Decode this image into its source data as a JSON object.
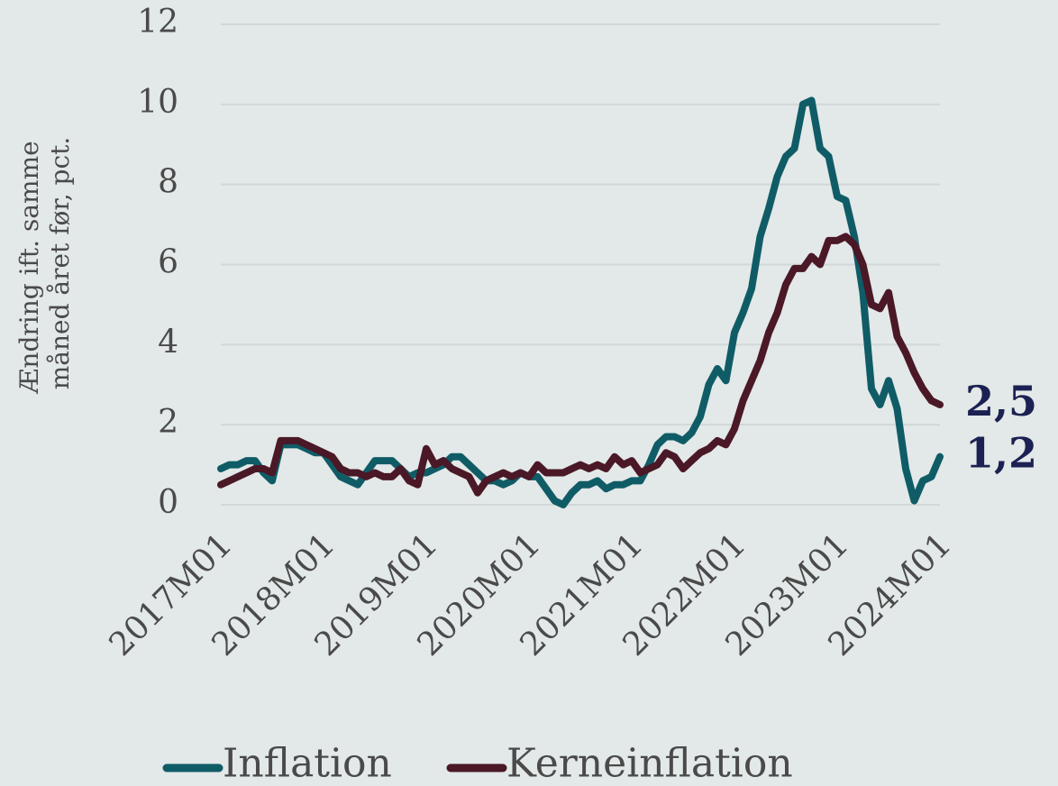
{
  "chart_data": {
    "type": "line",
    "ylabel": [
      "Ændring ift. samme",
      "måned året før, pct."
    ],
    "categories": [
      "2017M01",
      null,
      null,
      null,
      null,
      null,
      null,
      null,
      null,
      null,
      null,
      null,
      "2018M01",
      null,
      null,
      null,
      null,
      null,
      null,
      null,
      null,
      null,
      null,
      null,
      "2019M01",
      null,
      null,
      null,
      null,
      null,
      null,
      null,
      null,
      null,
      null,
      null,
      "2020M01",
      null,
      null,
      null,
      null,
      null,
      null,
      null,
      null,
      null,
      null,
      null,
      "2021M01",
      null,
      null,
      null,
      null,
      null,
      null,
      null,
      null,
      null,
      null,
      null,
      "2022M01",
      null,
      null,
      null,
      null,
      null,
      null,
      null,
      null,
      null,
      null,
      null,
      "2023M01",
      null,
      null,
      null,
      null,
      null,
      null,
      null,
      null,
      null,
      null,
      null,
      "2024M01"
    ],
    "series": [
      {
        "name": "Inflation",
        "color": "#0f5c66",
        "values": [
          0.9,
          1.0,
          1.0,
          1.1,
          1.1,
          0.8,
          0.6,
          1.5,
          1.5,
          1.5,
          1.4,
          1.3,
          1.3,
          1.0,
          0.7,
          0.6,
          0.5,
          0.8,
          1.1,
          1.1,
          1.1,
          0.9,
          0.7,
          0.8,
          0.8,
          0.9,
          1.0,
          1.2,
          1.2,
          1.0,
          0.8,
          0.6,
          0.6,
          0.5,
          0.6,
          0.8,
          0.7,
          0.7,
          0.4,
          0.1,
          0.0,
          0.3,
          0.5,
          0.5,
          0.6,
          0.4,
          0.5,
          0.5,
          0.6,
          0.6,
          1.0,
          1.5,
          1.7,
          1.7,
          1.6,
          1.8,
          2.2,
          3.0,
          3.4,
          3.1,
          4.3,
          4.8,
          5.4,
          6.7,
          7.4,
          8.2,
          8.7,
          8.9,
          10.0,
          10.1,
          8.9,
          8.7,
          7.7,
          7.6,
          6.7,
          5.3,
          2.9,
          2.5,
          3.1,
          2.4,
          0.9,
          0.1,
          0.6,
          0.7,
          1.2
        ],
        "value_labels": [
          null,
          null,
          null,
          null,
          null,
          null,
          null,
          null,
          null,
          null,
          null,
          null,
          null,
          null,
          null,
          null,
          null,
          null,
          null,
          null,
          null,
          null,
          null,
          null,
          null,
          null,
          null,
          null,
          null,
          null,
          null,
          null,
          null,
          null,
          null,
          null,
          null,
          null,
          null,
          null,
          null,
          null,
          null,
          null,
          null,
          null,
          null,
          null,
          null,
          null,
          null,
          null,
          null,
          null,
          null,
          null,
          null,
          null,
          null,
          null,
          null,
          null,
          null,
          null,
          null,
          null,
          null,
          null,
          null,
          null,
          null,
          null,
          null,
          null,
          null,
          null,
          null,
          null,
          null,
          null,
          null,
          null,
          null,
          null,
          "1,2"
        ]
      },
      {
        "name": "Kerneinflation",
        "color": "#4a1826",
        "values": [
          0.5,
          0.6,
          0.7,
          0.8,
          0.9,
          0.9,
          0.8,
          1.6,
          1.6,
          1.6,
          1.5,
          1.4,
          1.3,
          1.2,
          0.9,
          0.8,
          0.8,
          0.7,
          0.8,
          0.7,
          0.7,
          0.9,
          0.6,
          0.5,
          1.4,
          1.0,
          1.1,
          0.9,
          0.8,
          0.7,
          0.3,
          0.6,
          0.7,
          0.8,
          0.7,
          0.8,
          0.7,
          1.0,
          0.8,
          0.8,
          0.8,
          0.9,
          1.0,
          0.9,
          1.0,
          0.9,
          1.2,
          1.0,
          1.1,
          0.8,
          0.9,
          1.0,
          1.3,
          1.2,
          0.9,
          1.1,
          1.3,
          1.4,
          1.6,
          1.5,
          1.9,
          2.6,
          3.1,
          3.6,
          4.3,
          4.8,
          5.5,
          5.9,
          5.9,
          6.2,
          6.0,
          6.6,
          6.6,
          6.7,
          6.5,
          6.0,
          5.0,
          4.9,
          5.3,
          4.2,
          3.8,
          3.3,
          2.9,
          2.6,
          2.5
        ],
        "value_labels": [
          null,
          null,
          null,
          null,
          null,
          null,
          null,
          null,
          null,
          null,
          null,
          null,
          null,
          null,
          null,
          null,
          null,
          null,
          null,
          null,
          null,
          null,
          null,
          null,
          null,
          null,
          null,
          null,
          null,
          null,
          null,
          null,
          null,
          null,
          null,
          null,
          null,
          null,
          null,
          null,
          null,
          null,
          null,
          null,
          null,
          null,
          null,
          null,
          null,
          null,
          null,
          null,
          null,
          null,
          null,
          null,
          null,
          null,
          null,
          null,
          null,
          null,
          null,
          null,
          null,
          null,
          null,
          null,
          null,
          null,
          null,
          null,
          null,
          null,
          null,
          null,
          null,
          null,
          null,
          null,
          null,
          null,
          null,
          null,
          "2,5"
        ]
      }
    ],
    "ylim": [
      0,
      12
    ],
    "yticks": [
      0,
      2,
      4,
      6,
      8,
      10,
      12
    ],
    "grid": true,
    "legend": "bottom"
  }
}
